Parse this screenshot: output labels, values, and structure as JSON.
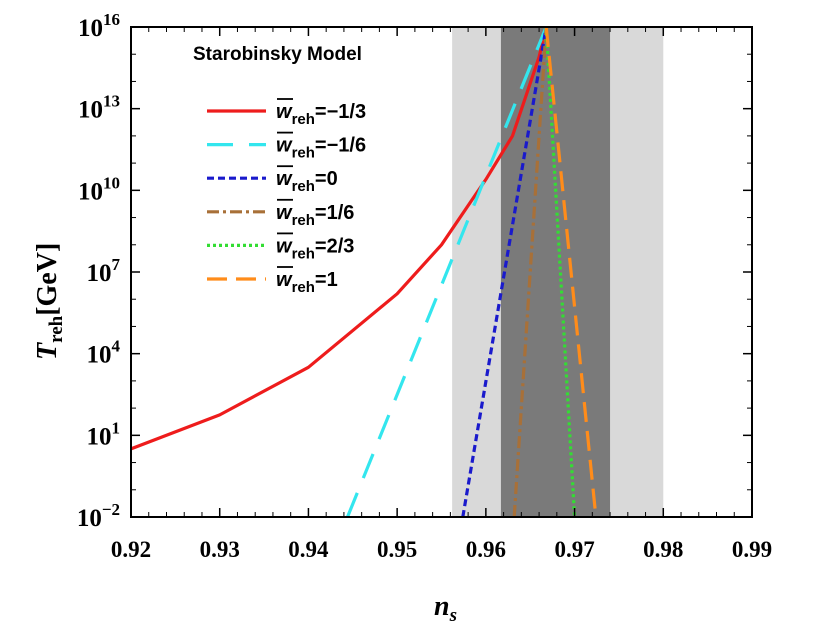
{
  "chart_data": {
    "type": "line",
    "title": "Starobinsky Model",
    "xlabel": "n",
    "xlabel_sub": "s",
    "ylabel": "T",
    "ylabel_sub": "reh",
    "ylabel_unit": "[GeV]",
    "y_scale": "log",
    "xlim": [
      0.92,
      0.99
    ],
    "ylim_log10": [
      -2,
      16
    ],
    "x_ticks": [
      "0.92",
      "0.93",
      "0.94",
      "0.95",
      "0.96",
      "0.97",
      "0.98",
      "0.99"
    ],
    "y_ticks": [
      {
        "base": "10",
        "exp": "16",
        "log": 16
      },
      {
        "base": "10",
        "exp": "13",
        "log": 13
      },
      {
        "base": "10",
        "exp": "10",
        "log": 10
      },
      {
        "base": "10",
        "exp": "7",
        "log": 7
      },
      {
        "base": "10",
        "exp": "4",
        "log": 4
      },
      {
        "base": "10",
        "exp": "1",
        "log": 1
      },
      {
        "base": "10",
        "exp": "−2",
        "log": -2
      }
    ],
    "bands": [
      {
        "x0": 0.9562,
        "x1": 0.98,
        "color": "#d9d9d9"
      },
      {
        "x0": 0.9617,
        "x1": 0.974,
        "color": "#7a7a7a"
      }
    ],
    "legend": {
      "placement": "top-left"
    },
    "series": [
      {
        "symbol": "w",
        "sub": "reh",
        "value": "=−1/3",
        "color": "#ee1c1c",
        "dash": "none",
        "width": 3.2,
        "points_log10": [
          [
            0.92,
            0.5
          ],
          [
            0.93,
            1.75
          ],
          [
            0.94,
            3.5
          ],
          [
            0.95,
            6.2
          ],
          [
            0.955,
            8.0
          ],
          [
            0.96,
            10.4
          ],
          [
            0.963,
            12.0
          ],
          [
            0.966,
            14.9
          ],
          [
            0.9668,
            16
          ]
        ]
      },
      {
        "symbol": "w",
        "sub": "reh",
        "value": "=−1/6",
        "color": "#33e6ee",
        "dash": "26,16",
        "width": 3.2,
        "points_log10": [
          [
            0.9444,
            -2
          ],
          [
            0.9668,
            16
          ]
        ]
      },
      {
        "symbol": "w",
        "sub": "reh",
        "value": "=0",
        "color": "#1a1acc",
        "dash": "7,4",
        "width": 3.2,
        "points_log10": [
          [
            0.9574,
            -2
          ],
          [
            0.9668,
            16
          ]
        ]
      },
      {
        "symbol": "w",
        "sub": "reh",
        "value": "=1/6",
        "color": "#a87038",
        "dash": "12,4,3,4",
        "width": 3.2,
        "points_log10": [
          [
            0.9632,
            -2
          ],
          [
            0.9668,
            16
          ]
        ]
      },
      {
        "symbol": "w",
        "sub": "reh",
        "value": "=2/3",
        "color": "#33dd33",
        "dash": "3,3",
        "width": 3.2,
        "points_log10": [
          [
            0.9668,
            16
          ],
          [
            0.97,
            -2
          ]
        ]
      },
      {
        "symbol": "w",
        "sub": "reh",
        "value": "=1",
        "color": "#ff8c1a",
        "dash": "20,9",
        "width": 3.2,
        "points_log10": [
          [
            0.9668,
            16
          ],
          [
            0.9724,
            -2
          ]
        ]
      }
    ]
  }
}
